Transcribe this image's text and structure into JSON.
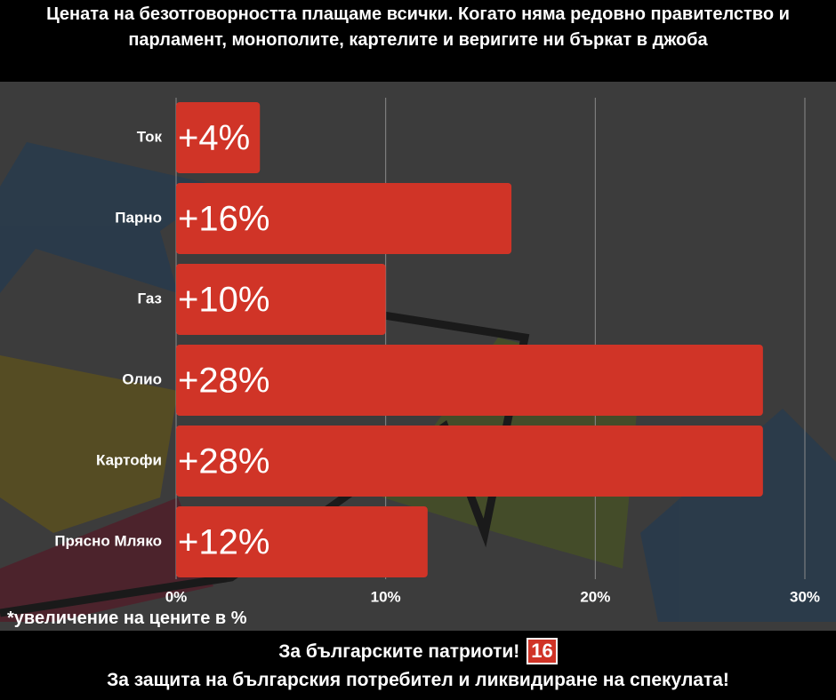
{
  "chart_data": {
    "type": "hbar",
    "title": "Цената на безотговорността плащаме всички. Когато няма редовно правителство и парламент, монополите, картелите и веригите ни бъркат в джоба",
    "categories": [
      "Ток",
      "Парно",
      "Газ",
      "Олио",
      "Картофи",
      "Прясно Мляко"
    ],
    "values": [
      4,
      16,
      10,
      28,
      28,
      12
    ],
    "value_labels": [
      "+4%",
      "+16%",
      "+10%",
      "+28%",
      "+28%",
      "+12%"
    ],
    "color": "#d03427",
    "xlim": [
      0,
      30
    ],
    "xticks": [
      {
        "value": 0,
        "label": "0%"
      },
      {
        "value": 10,
        "label": "10%"
      },
      {
        "value": 20,
        "label": "20%"
      },
      {
        "value": 30,
        "label": "30%"
      }
    ],
    "grid": true,
    "note": "*увеличение на цените в %",
    "footer": {
      "line1": "За българските патриоти!",
      "logo": "16",
      "line2": "За защита на българския потребител и ликвидиране на спекулата!"
    }
  }
}
